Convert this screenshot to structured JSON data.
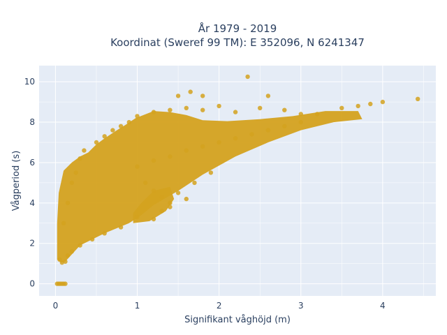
{
  "chart_data": {
    "type": "scatter",
    "title_lines": [
      "År 1979 - 2019",
      "Koordinat (Sweref 99 TM): E 352096, N 6241347"
    ],
    "xlabel": "Signifikant våghöjd (m)",
    "ylabel": "Vågperiod (s)",
    "xlim": [
      -0.2,
      4.65
    ],
    "ylim": [
      -0.6,
      10.8
    ],
    "x_ticks": [
      0,
      1,
      2,
      3,
      4
    ],
    "y_ticks": [
      0,
      2,
      4,
      6,
      8,
      10
    ],
    "x_tick_labels": [
      "0",
      "1",
      "2",
      "3",
      "4"
    ],
    "y_tick_labels": [
      "0",
      "2",
      "4",
      "6",
      "8",
      "10"
    ],
    "grid": true,
    "legend": "none",
    "colors": {
      "marker": "#d4a21f",
      "plot_bg": "#e5ecf6",
      "grid": "#ffffff"
    },
    "series": [
      {
        "values": [
          [
            0.02,
            0.0
          ],
          [
            0.04,
            0.0
          ],
          [
            0.06,
            0.0
          ],
          [
            0.08,
            0.0
          ],
          [
            0.1,
            0.0
          ],
          [
            0.12,
            0.0
          ],
          [
            0.05,
            1.2
          ],
          [
            0.08,
            1.05
          ],
          [
            0.12,
            1.1
          ],
          [
            0.15,
            1.4
          ],
          [
            0.2,
            1.6
          ],
          [
            0.3,
            1.9
          ],
          [
            0.45,
            2.2
          ],
          [
            0.6,
            2.5
          ],
          [
            0.8,
            2.8
          ],
          [
            1.0,
            3.3
          ],
          [
            0.1,
            3.0
          ],
          [
            0.15,
            4.0
          ],
          [
            0.2,
            5.0
          ],
          [
            0.25,
            5.5
          ],
          [
            0.3,
            6.2
          ],
          [
            0.35,
            6.6
          ],
          [
            0.5,
            7.0
          ],
          [
            0.6,
            7.3
          ],
          [
            0.7,
            7.6
          ],
          [
            0.8,
            7.8
          ],
          [
            0.9,
            8.0
          ],
          [
            1.0,
            8.3
          ],
          [
            1.2,
            8.5
          ],
          [
            1.4,
            8.6
          ],
          [
            1.6,
            8.7
          ],
          [
            1.8,
            8.6
          ],
          [
            2.0,
            8.8
          ],
          [
            2.2,
            8.5
          ],
          [
            2.5,
            8.7
          ],
          [
            2.8,
            8.6
          ],
          [
            3.0,
            8.4
          ],
          [
            3.2,
            8.4
          ],
          [
            3.5,
            8.7
          ],
          [
            3.7,
            8.8
          ],
          [
            3.85,
            8.9
          ],
          [
            4.0,
            9.0
          ],
          [
            4.43,
            9.15
          ],
          [
            1.5,
            9.3
          ],
          [
            1.65,
            9.5
          ],
          [
            1.8,
            9.3
          ],
          [
            2.35,
            10.25
          ],
          [
            2.6,
            9.3
          ],
          [
            1.0,
            5.8
          ],
          [
            1.2,
            6.1
          ],
          [
            1.4,
            6.3
          ],
          [
            1.6,
            6.6
          ],
          [
            1.8,
            6.8
          ],
          [
            2.0,
            7.0
          ],
          [
            2.2,
            7.2
          ],
          [
            2.4,
            7.4
          ],
          [
            2.6,
            7.6
          ],
          [
            2.8,
            7.8
          ],
          [
            3.0,
            8.0
          ],
          [
            1.1,
            5.0
          ],
          [
            1.2,
            4.6
          ],
          [
            1.3,
            4.3
          ],
          [
            1.4,
            4.0
          ],
          [
            1.5,
            4.5
          ],
          [
            1.6,
            4.2
          ],
          [
            1.3,
            3.6
          ],
          [
            1.2,
            3.2
          ],
          [
            1.4,
            3.8
          ],
          [
            1.7,
            5.0
          ],
          [
            1.9,
            5.5
          ]
        ]
      }
    ]
  }
}
